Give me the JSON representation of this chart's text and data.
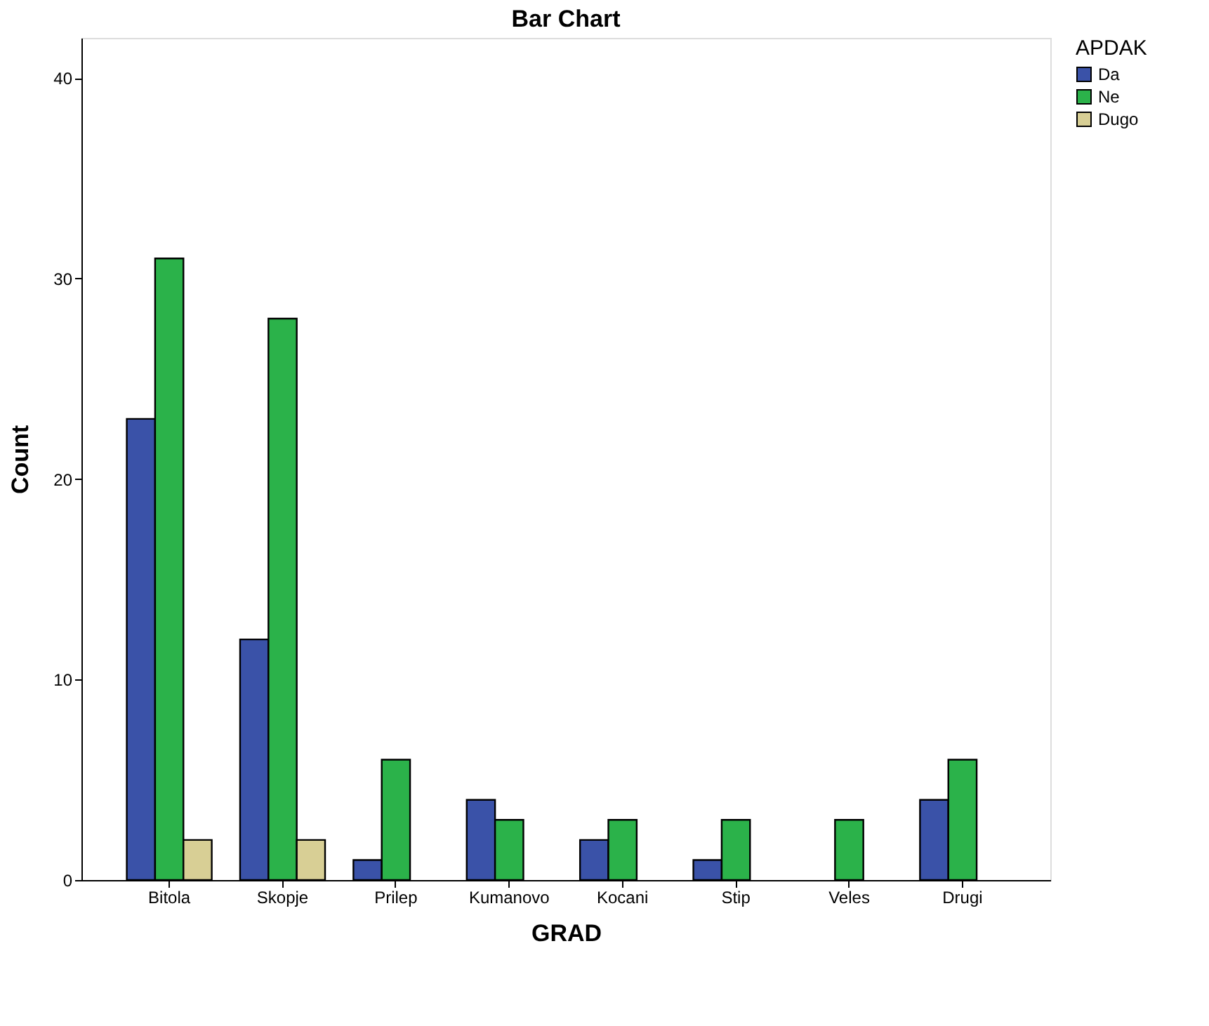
{
  "chart_data": {
    "type": "bar",
    "title": "Bar Chart",
    "xlabel": "GRAD",
    "ylabel": "Count",
    "legend_title": "APDAK",
    "categories": [
      "Bitola",
      "Skopje",
      "Prilep",
      "Kumanovo",
      "Kocani",
      "Stip",
      "Veles",
      "Drugi"
    ],
    "series": [
      {
        "name": "Da",
        "color": "#3a52a8",
        "values": [
          23,
          12,
          1,
          4,
          2,
          1,
          null,
          4
        ]
      },
      {
        "name": "Ne",
        "color": "#2bb24a",
        "values": [
          31,
          28,
          6,
          3,
          3,
          3,
          3,
          6
        ]
      },
      {
        "name": "Dugo",
        "color": "#d8cf95",
        "values": [
          2,
          2,
          null,
          null,
          null,
          null,
          null,
          null
        ]
      }
    ],
    "ylim": [
      0,
      42
    ],
    "yticks": [
      0,
      10,
      20,
      30,
      40
    ],
    "grid": false,
    "legend": "top right"
  }
}
